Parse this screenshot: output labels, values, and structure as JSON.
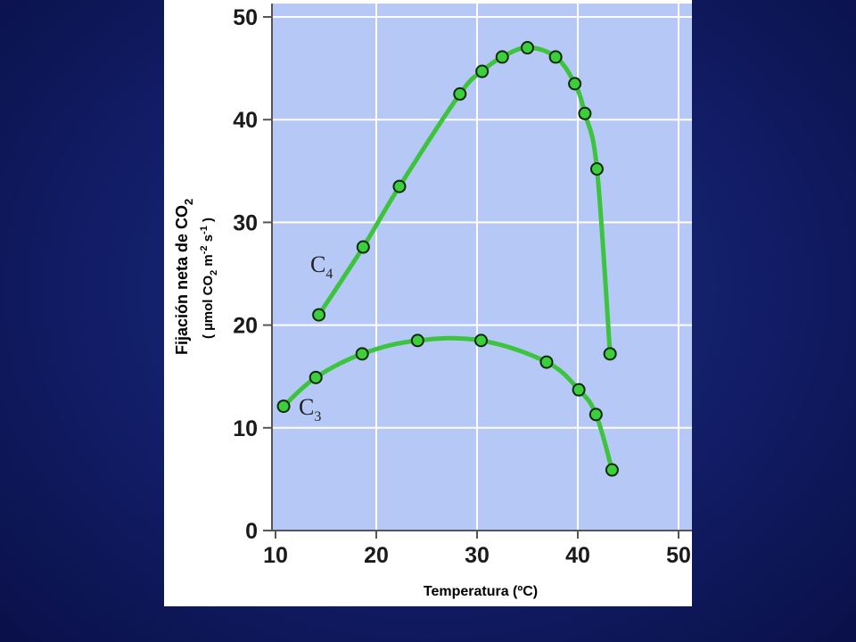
{
  "chart_data": {
    "type": "line",
    "xlabel": "Temperatura (ºC)",
    "ylabel": "Fijación neta de CO",
    "ylabel_sub": "2",
    "ylabel_units": "( µmol CO",
    "ylabel_units_sub1": "2",
    "ylabel_units_mid": " m",
    "ylabel_units_sup1": "-2",
    "ylabel_units_mid2": " s",
    "ylabel_units_sup2": "-1",
    "ylabel_units_end": " )",
    "xlim": [
      10,
      50
    ],
    "ylim": [
      0,
      50
    ],
    "x_ticks": [
      10,
      20,
      30,
      40,
      50
    ],
    "y_ticks": [
      0,
      10,
      20,
      30,
      40,
      50
    ],
    "grid": true,
    "colors": {
      "line": "#3dc43d",
      "marker": "#3ccf3c",
      "plot_bg": "#b6c8f6",
      "grid": "#ffffff"
    },
    "series": [
      {
        "name": "C",
        "name_sub": "4",
        "points": [
          {
            "x": 14.3,
            "y": 21.0
          },
          {
            "x": 18.7,
            "y": 27.6
          },
          {
            "x": 22.3,
            "y": 33.5
          },
          {
            "x": 28.3,
            "y": 42.5
          },
          {
            "x": 30.5,
            "y": 44.7
          },
          {
            "x": 32.5,
            "y": 46.1
          },
          {
            "x": 35.0,
            "y": 47.0
          },
          {
            "x": 37.8,
            "y": 46.1
          },
          {
            "x": 39.7,
            "y": 43.5
          },
          {
            "x": 40.7,
            "y": 40.6
          },
          {
            "x": 41.9,
            "y": 35.2
          },
          {
            "x": 43.2,
            "y": 17.2
          }
        ]
      },
      {
        "name": "C",
        "name_sub": "3",
        "points": [
          {
            "x": 10.8,
            "y": 12.1
          },
          {
            "x": 14.0,
            "y": 14.9
          },
          {
            "x": 18.6,
            "y": 17.2
          },
          {
            "x": 24.1,
            "y": 18.5
          },
          {
            "x": 30.4,
            "y": 18.5
          },
          {
            "x": 36.9,
            "y": 16.4
          },
          {
            "x": 40.1,
            "y": 13.7
          },
          {
            "x": 41.8,
            "y": 11.3
          },
          {
            "x": 43.4,
            "y": 5.9
          }
        ]
      }
    ]
  }
}
